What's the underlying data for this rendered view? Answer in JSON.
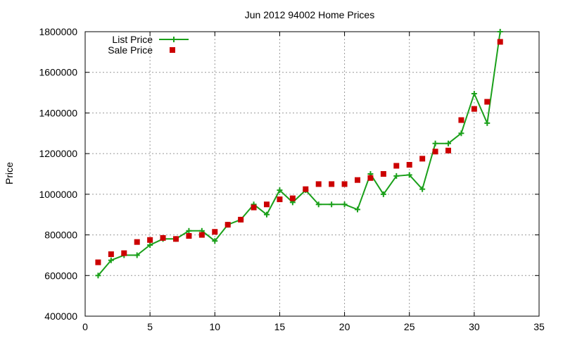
{
  "chart_data": {
    "type": "line",
    "title": "Jun 2012 94002 Home Prices",
    "xlabel": "",
    "ylabel": "Price",
    "xlim": [
      0,
      35
    ],
    "ylim": [
      400000,
      1800000
    ],
    "xticks": [
      0,
      5,
      10,
      15,
      20,
      25,
      30,
      35
    ],
    "yticks": [
      400000,
      600000,
      800000,
      1000000,
      1200000,
      1400000,
      1600000,
      1800000
    ],
    "grid": true,
    "legend_position": "top-left",
    "series": [
      {
        "name": "List Price",
        "style": "line-with-plus-markers",
        "color": "#1aa01a",
        "x": [
          1,
          2,
          3,
          4,
          5,
          6,
          7,
          8,
          9,
          10,
          11,
          12,
          13,
          14,
          15,
          16,
          17,
          18,
          19,
          20,
          21,
          22,
          23,
          24,
          25,
          26,
          27,
          28,
          29,
          30,
          31,
          32
        ],
        "values": [
          600000,
          675000,
          700000,
          700000,
          750000,
          780000,
          780000,
          820000,
          820000,
          770000,
          850000,
          875000,
          950000,
          900000,
          1020000,
          960000,
          1020000,
          950000,
          950000,
          950000,
          925000,
          1100000,
          1000000,
          1090000,
          1095000,
          1025000,
          1250000,
          1250000,
          1300000,
          1495000,
          1350000,
          1800000
        ]
      },
      {
        "name": "Sale Price",
        "style": "square-markers",
        "color": "#cc0000",
        "x": [
          1,
          2,
          3,
          4,
          5,
          6,
          7,
          8,
          9,
          10,
          11,
          12,
          13,
          14,
          15,
          16,
          17,
          18,
          19,
          20,
          21,
          22,
          23,
          24,
          25,
          26,
          27,
          28,
          29,
          30,
          31,
          32
        ],
        "values": [
          665000,
          705000,
          710000,
          765000,
          775000,
          785000,
          780000,
          795000,
          800000,
          815000,
          850000,
          875000,
          935000,
          950000,
          975000,
          980000,
          1025000,
          1050000,
          1050000,
          1050000,
          1070000,
          1080000,
          1100000,
          1140000,
          1145000,
          1175000,
          1210000,
          1215000,
          1365000,
          1420000,
          1455000,
          1750000
        ]
      }
    ]
  }
}
